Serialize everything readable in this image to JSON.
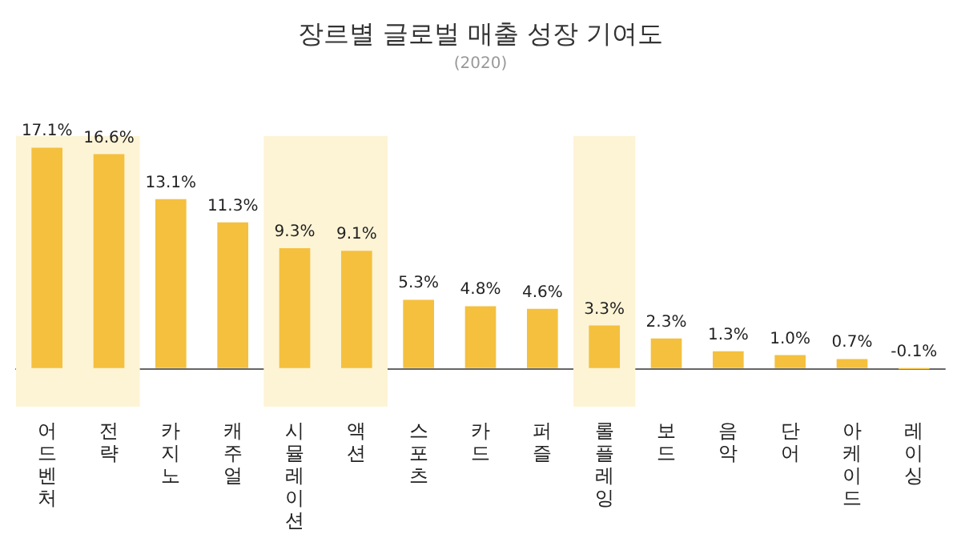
{
  "chart_data": {
    "type": "bar",
    "title": "장르별 글로벌 매출 성장 기여도",
    "subtitle": "(2020)",
    "categories": [
      "어드벤처",
      "전략",
      "카지노",
      "캐주얼",
      "시뮬레이션",
      "액션",
      "스포츠",
      "카드",
      "퍼즐",
      "롤플레잉",
      "보드",
      "음악",
      "단어",
      "아케이드",
      "레이싱"
    ],
    "values": [
      17.1,
      16.6,
      13.1,
      11.3,
      9.3,
      9.1,
      5.3,
      4.8,
      4.6,
      3.3,
      2.3,
      1.3,
      1.0,
      0.7,
      -0.1
    ],
    "value_labels": [
      "17.1%",
      "16.6%",
      "13.1%",
      "11.3%",
      "9.3%",
      "9.1%",
      "5.3%",
      "4.8%",
      "4.6%",
      "3.3%",
      "2.3%",
      "1.3%",
      "1.0%",
      "0.7%",
      "-0.1%"
    ],
    "color": "#f4c03e",
    "bands": [
      {
        "axis": "x",
        "from": "어드벤처",
        "to": "전략",
        "color": "#fdf4d6"
      },
      {
        "axis": "x",
        "from": "시뮬레이션",
        "to": "액션",
        "color": "#fdf4d6"
      },
      {
        "axis": "x",
        "from": "롤플레잉",
        "to": "롤플레잉",
        "color": "#fdf4d6"
      }
    ]
  }
}
